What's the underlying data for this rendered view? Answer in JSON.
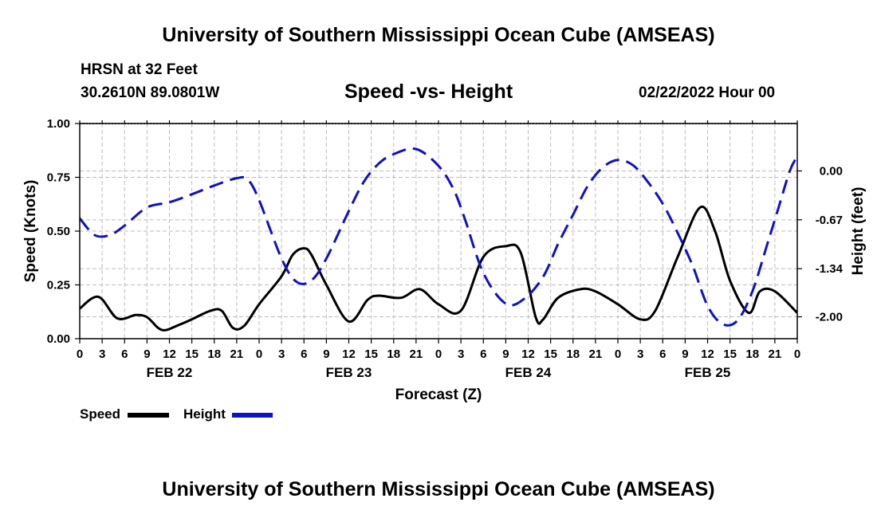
{
  "page": {
    "title": "University of Southern Mississippi Ocean Cube (AMSEAS)",
    "footer_title": "University of Southern Mississippi Ocean Cube (AMSEAS)",
    "station_line1": "HRSN at 32 Feet",
    "station_line2": "30.2610N  89.0801W",
    "date": "02/22/2022 Hour 00"
  },
  "chart_data": {
    "type": "line",
    "title": "Speed -vs- Height",
    "xlabel": "Forecast (Z)",
    "ylabel": "Speed (Knots)",
    "y2label": "Height (feet)",
    "x_hours": [
      0,
      96
    ],
    "ylim": [
      0,
      1
    ],
    "y2lim": [
      0.65,
      -2.3
    ],
    "yticks": [
      "0.00",
      "0.25",
      "0.50",
      "0.75",
      "1.00"
    ],
    "yticks_values": [
      0,
      0.25,
      0.5,
      0.75,
      1.0
    ],
    "y2ticks": [
      "0.00",
      "-0.67",
      "-1.34",
      "-2.00"
    ],
    "y2ticks_values": [
      0,
      -0.67,
      -1.34,
      -2.0
    ],
    "xticks": [
      "0",
      "3",
      "6",
      "9",
      "12",
      "15",
      "18",
      "21",
      "0",
      "3",
      "6",
      "9",
      "12",
      "15",
      "18",
      "21",
      "0",
      "3",
      "6",
      "9",
      "12",
      "15",
      "18",
      "21",
      "0",
      "3",
      "6",
      "9",
      "12",
      "15",
      "18",
      "21",
      "0"
    ],
    "day_labels": [
      {
        "label": "FEB 22",
        "hour": 12
      },
      {
        "label": "FEB 23",
        "hour": 36
      },
      {
        "label": "FEB 24",
        "hour": 60
      },
      {
        "label": "FEB 25",
        "hour": 84
      }
    ],
    "grid": true,
    "legend": "bottom-left",
    "series": [
      {
        "name": "Speed",
        "color": "#000000",
        "axis": "left",
        "style": "solid",
        "x": [
          0,
          2.5,
          5,
          7.5,
          9,
          10.5,
          11.5,
          13,
          15,
          17.5,
          19,
          20.5,
          22,
          24,
          27,
          28.5,
          30,
          31,
          33,
          36,
          38.5,
          40,
          43,
          45.5,
          48,
          51,
          54,
          57,
          59,
          61,
          62,
          64,
          67,
          69,
          72,
          75,
          77,
          80,
          83,
          85,
          87,
          89.5,
          91,
          93,
          96
        ],
        "values": [
          0.14,
          0.195,
          0.095,
          0.11,
          0.1,
          0.05,
          0.04,
          0.06,
          0.09,
          0.13,
          0.13,
          0.05,
          0.06,
          0.16,
          0.29,
          0.39,
          0.42,
          0.39,
          0.25,
          0.08,
          0.18,
          0.2,
          0.19,
          0.23,
          0.16,
          0.13,
          0.38,
          0.43,
          0.4,
          0.1,
          0.09,
          0.19,
          0.23,
          0.22,
          0.16,
          0.09,
          0.13,
          0.38,
          0.61,
          0.5,
          0.27,
          0.12,
          0.22,
          0.22,
          0.12
        ]
      },
      {
        "name": "Height",
        "color": "#1010c8",
        "axis": "right",
        "style": "dashed",
        "x": [
          0,
          2,
          4,
          6,
          9,
          12,
          15,
          18,
          21,
          22.5,
          24,
          27,
          29,
          31,
          33,
          36,
          38,
          40,
          42,
          45,
          48,
          50,
          51.5,
          54,
          57,
          59.5,
          62,
          64,
          66,
          68,
          70,
          72,
          74,
          76,
          78,
          80,
          82,
          84,
          86,
          88,
          90,
          92,
          93.5,
          95,
          96
        ],
        "values": [
          -0.65,
          -0.88,
          -0.88,
          -0.75,
          -0.5,
          -0.43,
          -0.32,
          -0.2,
          -0.1,
          -0.12,
          -0.4,
          -1.2,
          -1.52,
          -1.5,
          -1.2,
          -0.55,
          -0.15,
          0.1,
          0.23,
          0.3,
          0.07,
          -0.25,
          -0.65,
          -1.4,
          -1.82,
          -1.75,
          -1.45,
          -1.0,
          -0.6,
          -0.2,
          0.05,
          0.15,
          0.08,
          -0.15,
          -0.45,
          -0.85,
          -1.3,
          -1.85,
          -2.1,
          -2.05,
          -1.65,
          -1.0,
          -0.5,
          0.0,
          0.2
        ]
      }
    ]
  }
}
